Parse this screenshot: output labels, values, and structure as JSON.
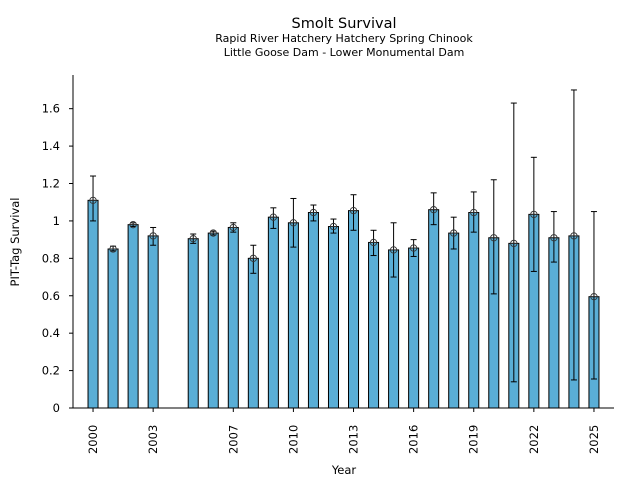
{
  "chart_data": {
    "type": "bar",
    "title": "Smolt Survival",
    "subtitle_lines": [
      "Rapid River Hatchery Hatchery Spring Chinook",
      "Little Goose Dam - Lower Monumental Dam"
    ],
    "xlabel": "Year",
    "ylabel": "PIT-Tag Survival",
    "ylim": [
      0,
      1.78
    ],
    "xlim": [
      1999.0,
      2026.0
    ],
    "yticks": [
      0,
      0.2,
      0.4,
      0.6,
      0.8,
      1,
      1.2,
      1.4,
      1.6
    ],
    "ytick_labels": [
      "0",
      "0.2",
      "0.4",
      "0.6",
      "0.8",
      "1",
      "1.2",
      "1.4",
      "1.6"
    ],
    "xticks": [
      2000,
      2003,
      2007,
      2010,
      2013,
      2016,
      2019,
      2022,
      2025
    ],
    "xtick_labels": [
      "2000",
      "2003",
      "2007",
      "2010",
      "2013",
      "2016",
      "2019",
      "2022",
      "2025"
    ],
    "grid": false,
    "bar_color": "#5aaed6",
    "edge_color": "#000000",
    "categories": [
      2000,
      2001,
      2002,
      2003,
      2005,
      2006,
      2007,
      2008,
      2009,
      2010,
      2011,
      2012,
      2013,
      2014,
      2015,
      2016,
      2017,
      2018,
      2019,
      2020,
      2021,
      2022,
      2023,
      2024,
      2025
    ],
    "values": [
      1.11,
      0.85,
      0.98,
      0.92,
      0.905,
      0.935,
      0.965,
      0.8,
      1.02,
      0.99,
      1.045,
      0.97,
      1.055,
      0.885,
      0.845,
      0.855,
      1.06,
      0.935,
      1.045,
      0.91,
      0.88,
      1.035,
      0.91,
      0.92,
      0.595
    ],
    "err_low": [
      1.0,
      0.84,
      0.97,
      0.87,
      0.88,
      0.925,
      0.94,
      0.72,
      0.96,
      0.86,
      1.0,
      0.935,
      0.95,
      0.815,
      0.7,
      0.81,
      0.98,
      0.85,
      0.94,
      0.61,
      0.14,
      0.73,
      0.78,
      0.15,
      0.155
    ],
    "err_high": [
      1.24,
      0.865,
      0.99,
      0.965,
      0.93,
      0.945,
      0.99,
      0.87,
      1.07,
      1.12,
      1.085,
      1.01,
      1.14,
      0.95,
      0.99,
      0.9,
      1.15,
      1.02,
      1.155,
      1.22,
      1.63,
      1.34,
      1.05,
      1.7,
      1.05
    ]
  }
}
